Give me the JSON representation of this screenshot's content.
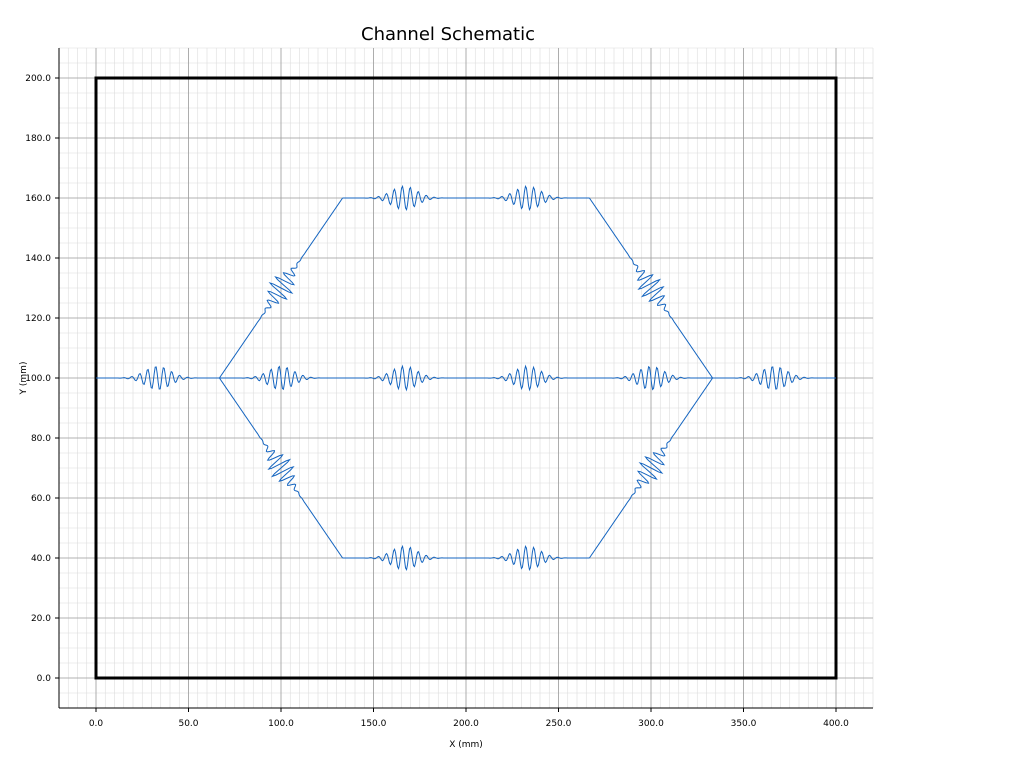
{
  "chart_data": {
    "type": "line",
    "title": "Channel Schematic",
    "xlabel": "X (mm)",
    "ylabel": "Y (mm)",
    "xlim": [
      -20,
      420
    ],
    "ylim": [
      -10,
      210
    ],
    "xticks": [
      0,
      50,
      100,
      150,
      200,
      250,
      300,
      350,
      400
    ],
    "yticks": [
      0,
      20,
      40,
      60,
      80,
      100,
      120,
      140,
      160,
      180,
      200
    ],
    "xtick_labels": [
      "0.0",
      "50.0",
      "100.0",
      "150.0",
      "200.0",
      "250.0",
      "300.0",
      "350.0",
      "400.0"
    ],
    "ytick_labels": [
      "0.0",
      "20.0",
      "40.0",
      "60.0",
      "80.0",
      "100.0",
      "120.0",
      "140.0",
      "160.0",
      "180.0",
      "200.0"
    ],
    "minor_grid_step": 5,
    "grid": true,
    "colors": {
      "channel": "#1565c0",
      "boundary": "#000000",
      "major_grid": "#9e9e9e",
      "minor_grid": "#dcdcdc"
    },
    "boundary_rect": {
      "x": [
        0,
        400
      ],
      "y": [
        0,
        200
      ]
    },
    "wave_amplitude": 4,
    "series": [
      {
        "segments": [
          {
            "start": [
              0,
              100
            ],
            "end": [
              66.7,
              100
            ],
            "packets_at": [
              0.5
            ]
          },
          {
            "start": [
              66.7,
              100
            ],
            "end": [
              333.3,
              100
            ],
            "packets_at": [
              0.125,
              0.375,
              0.625,
              0.875
            ]
          },
          {
            "start": [
              333.3,
              100
            ],
            "end": [
              400,
              100
            ],
            "packets_at": [
              0.5
            ]
          },
          {
            "start": [
              66.7,
              100
            ],
            "end": [
              133.3,
              160
            ],
            "packets_at": [
              0.5
            ]
          },
          {
            "start": [
              133.3,
              160
            ],
            "end": [
              266.7,
              160
            ],
            "packets_at": [
              0.25,
              0.75
            ]
          },
          {
            "start": [
              266.7,
              160
            ],
            "end": [
              333.3,
              100
            ],
            "packets_at": [
              0.5
            ]
          },
          {
            "start": [
              66.7,
              100
            ],
            "end": [
              133.3,
              40
            ],
            "packets_at": [
              0.5
            ]
          },
          {
            "start": [
              133.3,
              40
            ],
            "end": [
              266.7,
              40
            ],
            "packets_at": [
              0.25,
              0.75
            ]
          },
          {
            "start": [
              266.7,
              40
            ],
            "end": [
              333.3,
              100
            ],
            "packets_at": [
              0.5
            ]
          }
        ]
      }
    ]
  }
}
